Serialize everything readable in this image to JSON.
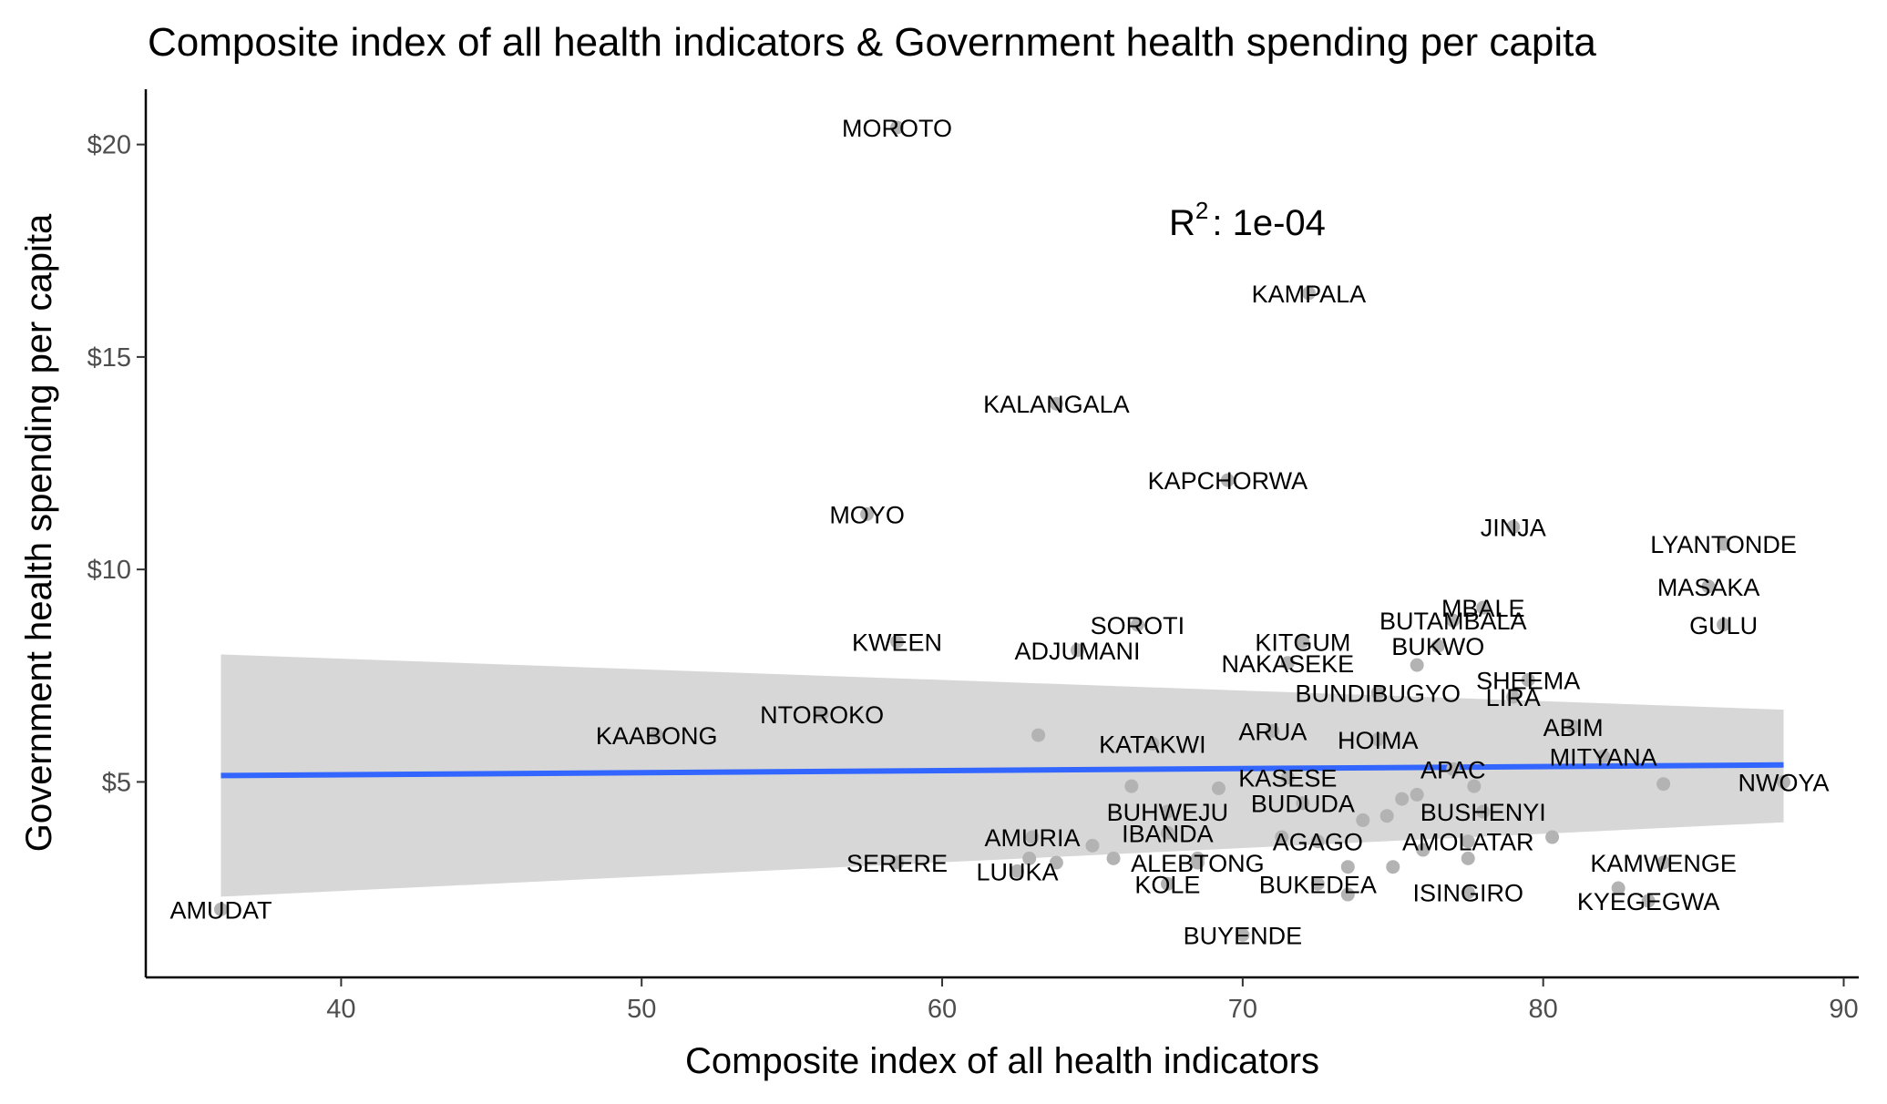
{
  "chart_data": {
    "type": "scatter",
    "title": "Composite index of all health indicators & Government health spending per capita",
    "xlabel": "Composite index of all health indicators",
    "ylabel": "Government health spending per capita",
    "xlim": [
      33.5,
      90.5
    ],
    "ylim": [
      0.4,
      21.3
    ],
    "x_ticks": [
      40,
      50,
      60,
      70,
      80,
      90
    ],
    "x_tick_labels": [
      "40",
      "50",
      "60",
      "70",
      "80",
      "90"
    ],
    "y_ticks": [
      5,
      10,
      15,
      20
    ],
    "y_tick_labels": [
      "$5",
      "$10",
      "$15",
      "$20"
    ],
    "annotation": {
      "base": "R",
      "sup": "2",
      "rest": ": 1e-04"
    },
    "grid": false,
    "regression": {
      "x_start": 36,
      "x_end": 88,
      "y_start": 5.15,
      "y_end": 5.4,
      "ci_start": [
        2.3,
        8.0
      ],
      "ci_end": [
        4.05,
        6.7
      ],
      "line_color": "#3366ff",
      "band_color": "#d3d3d3"
    },
    "point_color": "#b3b3b3",
    "points": [
      {
        "label": "MOROTO",
        "x": 58.5,
        "y": 20.4
      },
      {
        "label": "KAMPALA",
        "x": 72.2,
        "y": 16.5
      },
      {
        "label": "KALANGALA",
        "x": 63.8,
        "y": 13.9
      },
      {
        "label": "KAPCHORWA",
        "x": 69.5,
        "y": 12.1
      },
      {
        "label": "MOYO",
        "x": 57.5,
        "y": 11.3
      },
      {
        "label": "JINJA",
        "x": 79.0,
        "y": 11.0
      },
      {
        "label": "LYANTONDE",
        "x": 86.0,
        "y": 10.6
      },
      {
        "label": "MASAKA",
        "x": 85.5,
        "y": 9.6
      },
      {
        "label": "MBALE",
        "x": 78.0,
        "y": 9.1
      },
      {
        "label": "GULU",
        "x": 86.0,
        "y": 8.7
      },
      {
        "label": "SOROTI",
        "x": 66.5,
        "y": 8.7
      },
      {
        "label": "BUTAMBALA",
        "x": 77.0,
        "y": 8.8
      },
      {
        "label": "KWEEN",
        "x": 58.5,
        "y": 8.3
      },
      {
        "label": "KITGUM",
        "x": 72.0,
        "y": 8.3
      },
      {
        "label": "ADJUMANI",
        "x": 64.5,
        "y": 8.1
      },
      {
        "label": "BUKWO",
        "x": 76.5,
        "y": 8.2
      },
      {
        "label": "NAKASEKE",
        "x": 71.5,
        "y": 7.8
      },
      {
        "label": "SHEEMA",
        "x": 79.5,
        "y": 7.4
      },
      {
        "label": "BUNDIBUGYO",
        "x": 74.5,
        "y": 7.1
      },
      {
        "label": "LIRA",
        "x": 79.0,
        "y": 7.0
      },
      {
        "label": "NTOROKO",
        "x": 56.0,
        "y": 6.6
      },
      {
        "label": "ABIM",
        "x": 81.0,
        "y": 6.3
      },
      {
        "label": "KAABONG",
        "x": 50.5,
        "y": 6.1
      },
      {
        "label": "ARUA",
        "x": 71.0,
        "y": 6.2
      },
      {
        "label": "HOIMA",
        "x": 74.5,
        "y": 6.0
      },
      {
        "label": "KATAKWI",
        "x": 67.0,
        "y": 5.9
      },
      {
        "label": "MITYANA",
        "x": 82.0,
        "y": 5.6
      },
      {
        "label": "APAC",
        "x": 77.0,
        "y": 5.3
      },
      {
        "label": "KASESE",
        "x": 71.5,
        "y": 5.1
      },
      {
        "label": "NWOYA",
        "x": 88.0,
        "y": 5.0
      },
      {
        "label": "BUHWEJU",
        "x": 67.5,
        "y": 4.3
      },
      {
        "label": "BUDUDA",
        "x": 72.0,
        "y": 4.5
      },
      {
        "label": "BUSHENYI",
        "x": 78.0,
        "y": 4.3
      },
      {
        "label": "AMURIA",
        "x": 63.0,
        "y": 3.7
      },
      {
        "label": "IBANDA",
        "x": 67.5,
        "y": 3.8
      },
      {
        "label": "AGAGO",
        "x": 72.5,
        "y": 3.6
      },
      {
        "label": "AMOLATAR",
        "x": 77.5,
        "y": 3.6
      },
      {
        "label": "SERERE",
        "x": 58.5,
        "y": 3.1
      },
      {
        "label": "ALEBTONG",
        "x": 68.5,
        "y": 3.1
      },
      {
        "label": "KAMWENGE",
        "x": 84.0,
        "y": 3.1
      },
      {
        "label": "LUUKA",
        "x": 62.5,
        "y": 2.9
      },
      {
        "label": "KOLE",
        "x": 67.5,
        "y": 2.6
      },
      {
        "label": "BUKEDEA",
        "x": 72.5,
        "y": 2.6
      },
      {
        "label": "ISINGIRO",
        "x": 77.5,
        "y": 2.4
      },
      {
        "label": "KYEGEGWA",
        "x": 83.5,
        "y": 2.2
      },
      {
        "label": "AMUDAT",
        "x": 36.0,
        "y": 2.0
      },
      {
        "label": "BUYENDE",
        "x": 70.0,
        "y": 1.4
      },
      {
        "label": "",
        "x": 63.2,
        "y": 6.1
      },
      {
        "label": "",
        "x": 66.3,
        "y": 4.9
      },
      {
        "label": "",
        "x": 69.2,
        "y": 4.85
      },
      {
        "label": "",
        "x": 65.7,
        "y": 3.2
      },
      {
        "label": "",
        "x": 65.0,
        "y": 3.5
      },
      {
        "label": "",
        "x": 63.8,
        "y": 3.1
      },
      {
        "label": "",
        "x": 62.9,
        "y": 3.2
      },
      {
        "label": "",
        "x": 68.5,
        "y": 3.2
      },
      {
        "label": "",
        "x": 71.3,
        "y": 3.7
      },
      {
        "label": "",
        "x": 73.5,
        "y": 3.0
      },
      {
        "label": "",
        "x": 74.0,
        "y": 4.1
      },
      {
        "label": "",
        "x": 74.8,
        "y": 4.2
      },
      {
        "label": "",
        "x": 75.3,
        "y": 4.6
      },
      {
        "label": "",
        "x": 75.0,
        "y": 3.0
      },
      {
        "label": "",
        "x": 75.8,
        "y": 4.7
      },
      {
        "label": "",
        "x": 76.0,
        "y": 3.4
      },
      {
        "label": "",
        "x": 75.8,
        "y": 7.75
      },
      {
        "label": "",
        "x": 77.7,
        "y": 4.9
      },
      {
        "label": "",
        "x": 77.5,
        "y": 3.2
      },
      {
        "label": "",
        "x": 84.0,
        "y": 4.95
      },
      {
        "label": "",
        "x": 80.3,
        "y": 3.7
      },
      {
        "label": "",
        "x": 82.5,
        "y": 2.5
      },
      {
        "label": "",
        "x": 73.5,
        "y": 2.35
      }
    ]
  }
}
